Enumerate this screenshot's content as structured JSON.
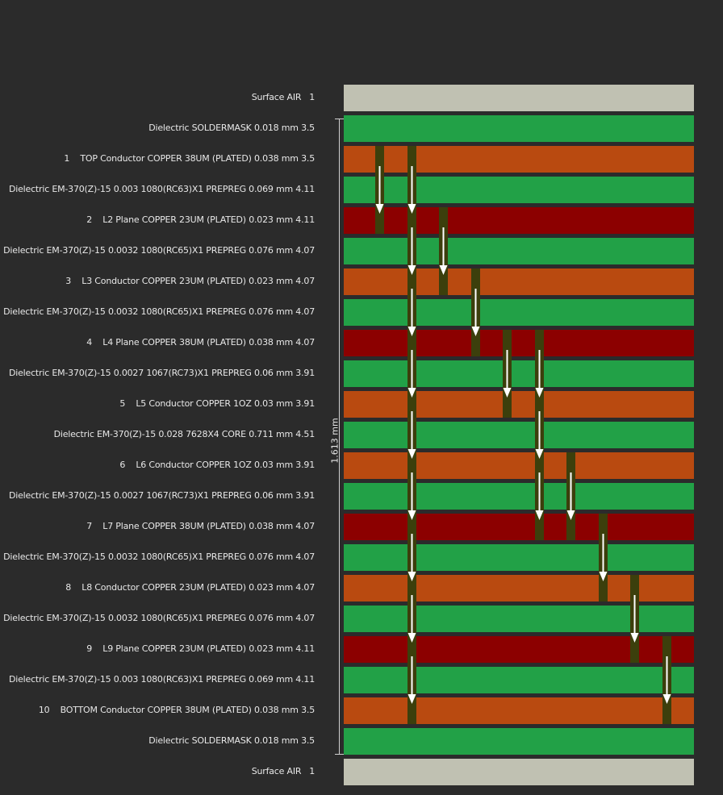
{
  "colors": {
    "background": "#2b2b2b",
    "surface": "#c0c1b2",
    "dielectric": "#22a147",
    "conductor": "#b94a10",
    "plane": "#8c0000",
    "via_barrel": "#3c3f0c",
    "arrow": "#ffffff"
  },
  "thickness_label": "1.613 mm",
  "layers": [
    {
      "label": "Surface AIR   1",
      "type": "surface"
    },
    {
      "label": "Dielectric SOLDERMASK 0.018 mm 3.5",
      "type": "dielectric"
    },
    {
      "label": "1    TOP Conductor COPPER 38UM (PLATED) 0.038 mm 3.5",
      "type": "conductor"
    },
    {
      "label": "Dielectric EM-370(Z)-15 0.003 1080(RC63)X1 PREPREG 0.069 mm 4.11",
      "type": "dielectric"
    },
    {
      "label": "2    L2 Plane COPPER 23UM (PLATED) 0.023 mm 4.11",
      "type": "plane"
    },
    {
      "label": "Dielectric EM-370(Z)-15 0.0032 1080(RC65)X1 PREPREG 0.076 mm 4.07",
      "type": "dielectric"
    },
    {
      "label": "3    L3 Conductor COPPER 23UM (PLATED) 0.023 mm 4.07",
      "type": "conductor"
    },
    {
      "label": "Dielectric EM-370(Z)-15 0.0032 1080(RC65)X1 PREPREG 0.076 mm 4.07",
      "type": "dielectric"
    },
    {
      "label": "4    L4 Plane COPPER 38UM (PLATED) 0.038 mm 4.07",
      "type": "plane"
    },
    {
      "label": "Dielectric EM-370(Z)-15 0.0027 1067(RC73)X1 PREPREG 0.06 mm 3.91",
      "type": "dielectric"
    },
    {
      "label": "5    L5 Conductor COPPER 1OZ 0.03 mm 3.91",
      "type": "conductor"
    },
    {
      "label": "Dielectric EM-370(Z)-15 0.028 7628X4 CORE 0.711 mm 4.51",
      "type": "dielectric"
    },
    {
      "label": "6    L6 Conductor COPPER 1OZ 0.03 mm 3.91",
      "type": "conductor"
    },
    {
      "label": "Dielectric EM-370(Z)-15 0.0027 1067(RC73)X1 PREPREG 0.06 mm 3.91",
      "type": "dielectric"
    },
    {
      "label": "7    L7 Plane COPPER 38UM (PLATED) 0.038 mm 4.07",
      "type": "plane"
    },
    {
      "label": "Dielectric EM-370(Z)-15 0.0032 1080(RC65)X1 PREPREG 0.076 mm 4.07",
      "type": "dielectric"
    },
    {
      "label": "8    L8 Conductor COPPER 23UM (PLATED) 0.023 mm 4.07",
      "type": "conductor"
    },
    {
      "label": "Dielectric EM-370(Z)-15 0.0032 1080(RC65)X1 PREPREG 0.076 mm 4.07",
      "type": "dielectric"
    },
    {
      "label": "9    L9 Plane COPPER 23UM (PLATED) 0.023 mm 4.11",
      "type": "plane"
    },
    {
      "label": "Dielectric EM-370(Z)-15 0.003 1080(RC63)X1 PREPREG 0.069 mm 4.11",
      "type": "dielectric"
    },
    {
      "label": "10    BOTTOM Conductor COPPER 38UM (PLATED) 0.038 mm 3.5",
      "type": "conductor"
    },
    {
      "label": "Dielectric SOLDERMASK 0.018 mm 3.5",
      "type": "dielectric"
    },
    {
      "label": "Surface AIR   1",
      "type": "surface"
    }
  ],
  "vias": [
    {
      "name": "via-1-2",
      "from_layer": 1,
      "to_layer": 2
    },
    {
      "name": "via-1-10",
      "from_layer": 1,
      "to_layer": 10
    },
    {
      "name": "via-2-3",
      "from_layer": 2,
      "to_layer": 3
    },
    {
      "name": "via-3-4",
      "from_layer": 3,
      "to_layer": 4
    },
    {
      "name": "via-4-5",
      "from_layer": 4,
      "to_layer": 5
    },
    {
      "name": "via-4-7",
      "from_layer": 4,
      "to_layer": 7
    },
    {
      "name": "via-6-7",
      "from_layer": 6,
      "to_layer": 7
    },
    {
      "name": "via-7-8",
      "from_layer": 7,
      "to_layer": 8
    },
    {
      "name": "via-8-9",
      "from_layer": 8,
      "to_layer": 9
    },
    {
      "name": "via-9-10",
      "from_layer": 9,
      "to_layer": 10
    }
  ]
}
